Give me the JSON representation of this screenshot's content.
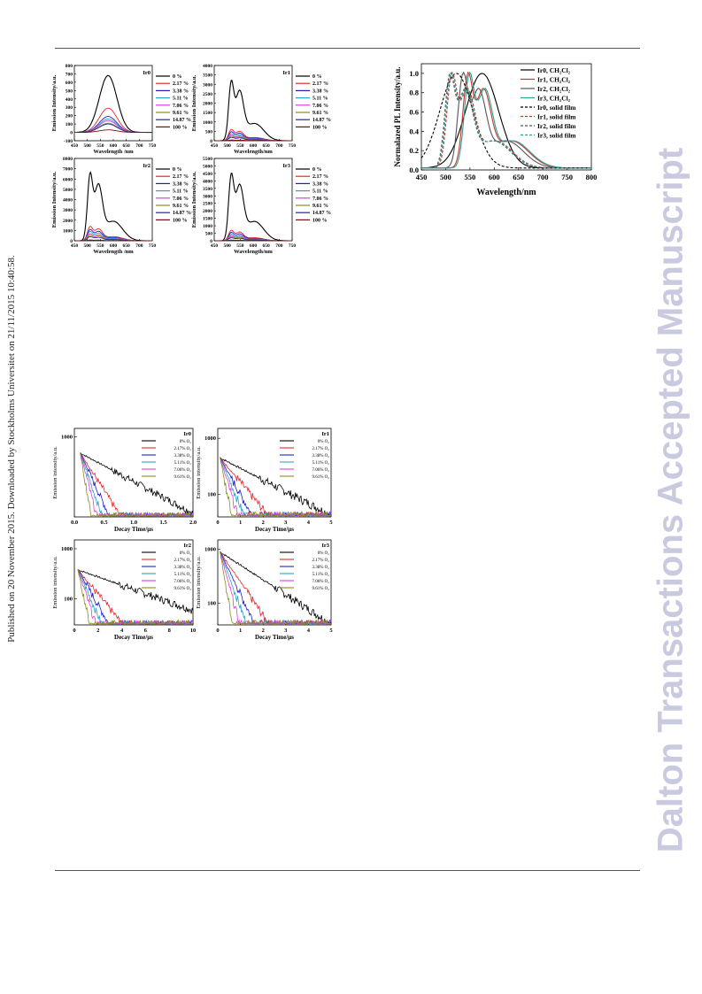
{
  "sidebar": {
    "published": "Published on 20 November 2015. Downloaded by Stockholms Universitet on 21/11/2015 10:40:58.",
    "banner": "Dalton Transactions Accepted Manuscript"
  },
  "emission_legend": [
    "0 %",
    "2.17 %",
    "3.38 %",
    "5.11 %",
    "7.06 %",
    "9.61 %",
    "14.87 %",
    "100 %"
  ],
  "decay_legend": [
    "0% O₂",
    "2.17% O₂",
    "3.38% O₂",
    "5.11% O₂",
    "7.06% O₂",
    "9.61% O₂"
  ],
  "colors": {
    "series": [
      "#000000",
      "#e8262b",
      "#1e1ec8",
      "#2fa3c6",
      "#e23be0",
      "#8d8b19",
      "#1f2d8c",
      "#7a0f0f"
    ],
    "norm": [
      "#000000",
      "#c0392b",
      "#555555",
      "#2aa198"
    ]
  },
  "chart_data": [
    {
      "type": "line",
      "panel": "Ir0",
      "xlabel": "Wavelength /nm",
      "ylabel": "Emission Intensity/a.u.",
      "xlim": [
        450,
        750
      ],
      "ylim": [
        -100,
        800
      ],
      "xticks": [
        450,
        500,
        550,
        600,
        650,
        700,
        750
      ],
      "yticks": [
        -100,
        0,
        100,
        200,
        300,
        400,
        500,
        600,
        700,
        800
      ],
      "shape": "broad",
      "peak_x": 580,
      "peaks": [
        680,
        290,
        190,
        160,
        140,
        110,
        100,
        30
      ]
    },
    {
      "type": "line",
      "panel": "Ir1",
      "xlabel": "Wavelength/nm",
      "ylabel": "Emission Intensity/a.u.",
      "xlim": [
        450,
        750
      ],
      "ylim": [
        0,
        4000
      ],
      "xticks": [
        450,
        500,
        550,
        600,
        650,
        700,
        750
      ],
      "yticks": [
        0,
        500,
        1000,
        1500,
        2000,
        2500,
        3000,
        3500,
        4000
      ],
      "shape": "vibronic",
      "peak_x": 515,
      "peaks": [
        3200,
        600,
        480,
        380,
        300,
        240,
        180,
        40
      ]
    },
    {
      "type": "line",
      "panel": "Ir2",
      "xlabel": "Wavelength /nm",
      "ylabel": "Emission Intensity/a.u.",
      "xlim": [
        450,
        750
      ],
      "ylim": [
        0,
        8000
      ],
      "xticks": [
        450,
        500,
        550,
        600,
        650,
        700,
        750
      ],
      "yticks": [
        0,
        1000,
        2000,
        3000,
        4000,
        5000,
        6000,
        7000,
        8000
      ],
      "shape": "vibronic",
      "peak_x": 510,
      "peaks": [
        6600,
        1400,
        1100,
        900,
        700,
        550,
        400,
        80
      ]
    },
    {
      "type": "line",
      "panel": "Ir3",
      "xlabel": "Wavelength/nm",
      "ylabel": "Emission Intensity/a.u.",
      "xlim": [
        450,
        750
      ],
      "ylim": [
        0,
        5500
      ],
      "xticks": [
        450,
        500,
        550,
        600,
        650,
        700,
        750
      ],
      "yticks": [
        0,
        500,
        1000,
        1500,
        2000,
        2500,
        3000,
        3500,
        4000,
        4500,
        5000,
        5500
      ],
      "shape": "vibronic",
      "peak_x": 515,
      "peaks": [
        4500,
        700,
        560,
        440,
        350,
        270,
        200,
        50
      ]
    },
    {
      "type": "line",
      "panel": "normalized",
      "xlabel": "Wavelength/nm",
      "ylabel": "Normalazed PL Intensity/a.u.",
      "xlim": [
        450,
        800
      ],
      "ylim": [
        0,
        1.1
      ],
      "xticks": [
        450,
        500,
        550,
        600,
        650,
        700,
        750,
        800
      ],
      "yticks": [
        0.0,
        0.2,
        0.4,
        0.6,
        0.8,
        1.0
      ],
      "series": [
        {
          "name": "Ir0, CH₂Cl₂",
          "peak": 575,
          "shape": "broad",
          "style": "solid"
        },
        {
          "name": "Ir1, CH₂Cl₂",
          "peak": 545,
          "shape": "vibronic",
          "style": "solid"
        },
        {
          "name": "Ir2, CH₂Cl₂",
          "peak": 535,
          "shape": "vibronic",
          "style": "solid"
        },
        {
          "name": "Ir3, CH₂Cl₂",
          "peak": 548,
          "shape": "vibronic",
          "style": "solid"
        },
        {
          "name": "Ir0, solid film",
          "peak": 522,
          "shape": "broad",
          "style": "dashed"
        },
        {
          "name": "Ir1, solid film",
          "peak": 512,
          "shape": "vibronic",
          "style": "dashed"
        },
        {
          "name": "Ir2, solid film",
          "peak": 508,
          "shape": "vibronic",
          "style": "dashed"
        },
        {
          "name": "Ir3, solid film",
          "peak": 510,
          "shape": "vibronic",
          "style": "dashed"
        }
      ]
    },
    {
      "type": "line",
      "panel": "Ir0",
      "xlabel": "Decay Time/μs",
      "ylabel": "Emission intensity/a.u.",
      "yscale": "log",
      "xlim": [
        0,
        2.0
      ],
      "ylim": [
        20,
        1500
      ],
      "xticks": [
        0.0,
        0.5,
        1.0,
        1.5,
        2.0
      ],
      "ytick_labels": [
        "1000"
      ],
      "ytick_values": [
        1000
      ],
      "start": 0.1,
      "y0": 450,
      "taus": [
        0.65,
        0.22,
        0.16,
        0.12,
        0.09,
        0.06
      ]
    },
    {
      "type": "line",
      "panel": "Ir1",
      "xlabel": "Decay Time/μs",
      "ylabel": "Emission intensity/a.u.",
      "yscale": "log",
      "xlim": [
        0,
        5
      ],
      "ylim": [
        40,
        1500
      ],
      "xticks": [
        0,
        1,
        2,
        3,
        4,
        5
      ],
      "ytick_labels": [
        "1000",
        "100"
      ],
      "ytick_values": [
        1000,
        100
      ],
      "start": 0.1,
      "y0": 450,
      "taus": [
        2.1,
        0.9,
        0.6,
        0.45,
        0.33,
        0.22
      ]
    },
    {
      "type": "line",
      "panel": "Ir2",
      "xlabel": "Decay Time/μs",
      "ylabel": "Emission intensity/a.u.",
      "yscale": "log",
      "xlim": [
        0,
        10
      ],
      "ylim": [
        30,
        1500
      ],
      "xticks": [
        0,
        2,
        4,
        6,
        8,
        10
      ],
      "ytick_labels": [
        "1000",
        "100"
      ],
      "ytick_values": [
        1000,
        100
      ],
      "start": 0.3,
      "y0": 380,
      "taus": [
        5.2,
        1.5,
        1.05,
        0.8,
        0.6,
        0.4
      ]
    },
    {
      "type": "line",
      "panel": "Ir3",
      "xlabel": "Decay Time/μs",
      "ylabel": "Emission intensity/a.u.",
      "yscale": "log",
      "xlim": [
        0,
        5
      ],
      "ylim": [
        40,
        1500
      ],
      "xticks": [
        0,
        1,
        2,
        3,
        4,
        5
      ],
      "ytick_labels": [
        "1000",
        "100"
      ],
      "ytick_values": [
        1000,
        100
      ],
      "start": 0.1,
      "y0": 900,
      "taus": [
        1.6,
        0.7,
        0.5,
        0.38,
        0.28,
        0.18
      ]
    }
  ]
}
